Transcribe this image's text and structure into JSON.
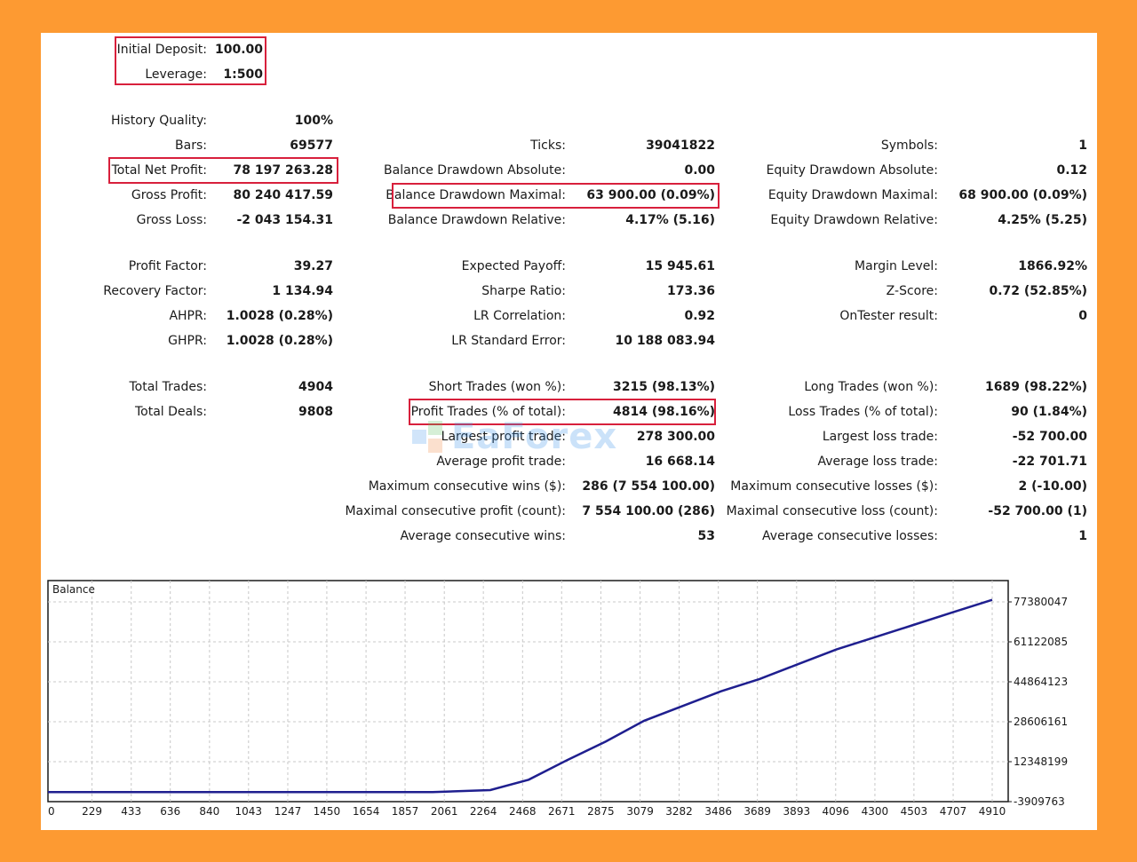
{
  "highlight_color": "#d8203c",
  "frame_color": "#fd9a32",
  "line_color": "#1f1f8f",
  "setup": [
    {
      "label": "Initial Deposit:",
      "value": "100.00"
    },
    {
      "label": "Leverage:",
      "value": "1:500"
    }
  ],
  "col1": [
    {
      "label": "History Quality:",
      "value": "100%"
    },
    {
      "label": "Bars:",
      "value": "69577"
    },
    {
      "label": "Total Net Profit:",
      "value": "78 197 263.28"
    },
    {
      "label": "Gross Profit:",
      "value": "80 240 417.59"
    },
    {
      "label": "Gross Loss:",
      "value": "-2 043 154.31"
    },
    {
      "label": "Profit Factor:",
      "value": "39.27"
    },
    {
      "label": "Recovery Factor:",
      "value": "1 134.94"
    },
    {
      "label": "AHPR:",
      "value": "1.0028 (0.28%)"
    },
    {
      "label": "GHPR:",
      "value": "1.0028 (0.28%)"
    },
    {
      "label": "Total Trades:",
      "value": "4904"
    },
    {
      "label": "Total Deals:",
      "value": "9808"
    }
  ],
  "col2": [
    {
      "label": "Ticks:",
      "value": "39041822"
    },
    {
      "label": "Balance Drawdown Absolute:",
      "value": "0.00"
    },
    {
      "label": "Balance Drawdown Maximal:",
      "value": "63 900.00 (0.09%)"
    },
    {
      "label": "Balance Drawdown Relative:",
      "value": "4.17% (5.16)"
    },
    {
      "label": "Expected Payoff:",
      "value": "15 945.61"
    },
    {
      "label": "Sharpe Ratio:",
      "value": "173.36"
    },
    {
      "label": "LR Correlation:",
      "value": "0.92"
    },
    {
      "label": "LR Standard Error:",
      "value": "10 188 083.94"
    },
    {
      "label": "Short Trades (won %):",
      "value": "3215 (98.13%)"
    },
    {
      "label": "Profit Trades (% of total):",
      "value": "4814 (98.16%)"
    },
    {
      "label": "Largest profit trade:",
      "value": "278 300.00"
    },
    {
      "label": "Average profit trade:",
      "value": "16 668.14"
    },
    {
      "label": "Maximum consecutive wins ($):",
      "value": "286 (7 554 100.00)"
    },
    {
      "label": "Maximal consecutive profit (count):",
      "value": "7 554 100.00 (286)"
    },
    {
      "label": "Average consecutive wins:",
      "value": "53"
    }
  ],
  "col3": [
    {
      "label": "Symbols:",
      "value": "1"
    },
    {
      "label": "Equity Drawdown Absolute:",
      "value": "0.12"
    },
    {
      "label": "Equity Drawdown Maximal:",
      "value": "68 900.00 (0.09%)"
    },
    {
      "label": "Equity Drawdown Relative:",
      "value": "4.25% (5.25)"
    },
    {
      "label": "Margin Level:",
      "value": "1866.92%"
    },
    {
      "label": "Z-Score:",
      "value": "0.72 (52.85%)"
    },
    {
      "label": "OnTester result:",
      "value": "0"
    },
    {
      "label": "Long Trades (won %):",
      "value": "1689 (98.22%)"
    },
    {
      "label": "Loss Trades (% of total):",
      "value": "90 (1.84%)"
    },
    {
      "label": "Largest loss trade:",
      "value": "-52 700.00"
    },
    {
      "label": "Average loss trade:",
      "value": "-22 701.71"
    },
    {
      "label": "Maximum consecutive losses ($):",
      "value": "2 (-10.00)"
    },
    {
      "label": "Maximal consecutive loss (count):",
      "value": "-52 700.00 (1)"
    },
    {
      "label": "Average consecutive losses:",
      "value": "1"
    }
  ],
  "watermark": "EaForex",
  "chart_data": {
    "type": "line",
    "title": "Balance",
    "x_ticks": [
      "0",
      "229",
      "433",
      "636",
      "840",
      "1043",
      "1247",
      "1450",
      "1654",
      "1857",
      "2061",
      "2264",
      "2468",
      "2671",
      "2875",
      "3079",
      "3282",
      "3486",
      "3689",
      "3893",
      "4096",
      "4300",
      "4503",
      "4707",
      "4910"
    ],
    "y_ticks": [
      "77380047",
      "61122085",
      "44864123",
      "28606161",
      "12348199",
      "-3909763"
    ],
    "xlim": [
      0,
      4910
    ],
    "ylim": [
      -3909763,
      77380047
    ],
    "grid": true,
    "series": [
      {
        "x": [
          0,
          1000,
          2000,
          2300,
          2500,
          2700,
          2900,
          3100,
          3300,
          3500,
          3700,
          3900,
          4100,
          4300,
          4500,
          4700,
          4910
        ],
        "y": [
          0,
          0,
          0,
          800000,
          5000000,
          13000000,
          20500000,
          29000000,
          35000000,
          41000000,
          46000000,
          52000000,
          58000000,
          63000000,
          68000000,
          73000000,
          78197263
        ]
      }
    ]
  }
}
